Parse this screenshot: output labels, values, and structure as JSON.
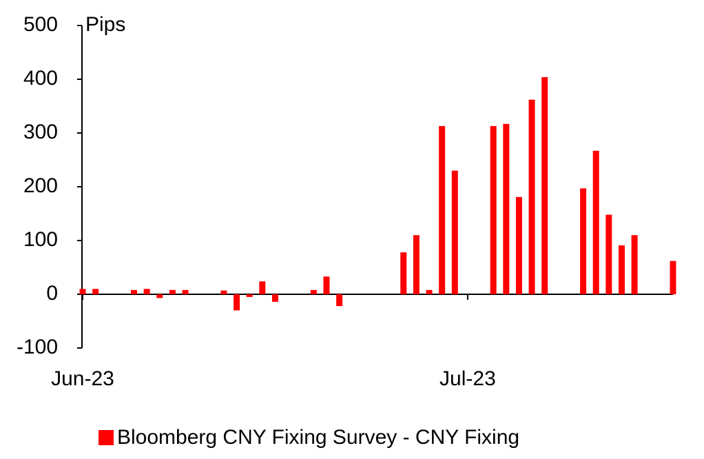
{
  "chart_data": {
    "type": "bar",
    "y_label": "Pips",
    "categories": [
      "Jun-23",
      null,
      null,
      null,
      null,
      null,
      null,
      null,
      null,
      null,
      null,
      null,
      null,
      null,
      null,
      null,
      null,
      null,
      null,
      null,
      null,
      null,
      null,
      null,
      null,
      null,
      null,
      null,
      null,
      null,
      "Jul-23",
      null,
      null,
      null,
      null,
      null,
      null,
      null,
      null,
      null,
      null,
      null,
      null,
      null,
      null,
      null,
      null
    ],
    "series": [
      {
        "name": "Bloomberg CNY Fixing Survey - CNY Fixing",
        "color": "#ff0000",
        "values": [
          10,
          10,
          null,
          null,
          8,
          10,
          -7,
          8,
          8,
          null,
          null,
          7,
          -30,
          -5,
          24,
          -14,
          null,
          null,
          8,
          33,
          -22,
          null,
          null,
          null,
          null,
          78,
          110,
          8,
          313,
          230,
          null,
          null,
          313,
          317,
          181,
          362,
          404,
          null,
          null,
          197,
          267,
          148,
          91,
          110,
          null,
          null,
          62
        ]
      }
    ],
    "ylim": [
      -100,
      500
    ],
    "yticks": [
      -100,
      0,
      100,
      200,
      300,
      400,
      500
    ],
    "legend": "bottom"
  }
}
